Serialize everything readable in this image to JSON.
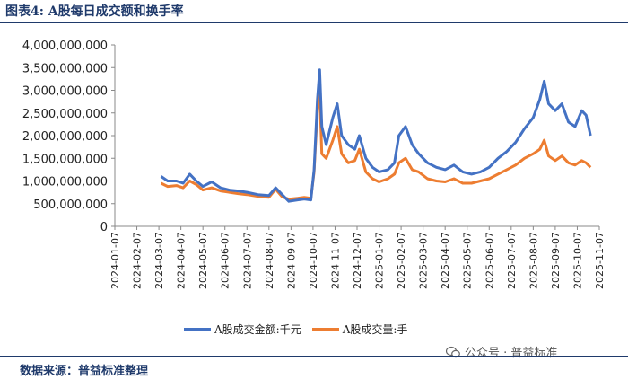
{
  "header": {
    "title": "图表4:  A股每日成交额和换手率"
  },
  "footer": {
    "source": "数据来源：普益标准整理"
  },
  "watermark": {
    "text": "公众号 · 普益标准"
  },
  "chart_data": {
    "type": "line",
    "title": "",
    "ylim": [
      0,
      4000000000
    ],
    "y_ticks": [
      "4,000,000,000",
      "3,500,000,000",
      "3,000,000,000",
      "2,500,000,000",
      "2,000,000,000",
      "1,500,000,000",
      "1,000,000,000",
      "500,000,000",
      "0"
    ],
    "x_ticks": [
      "2024-01-07",
      "2024-02-07",
      "2024-03-07",
      "2024-04-07",
      "2024-05-07",
      "2024-06-07",
      "2024-07-07",
      "2024-08-07",
      "2024-09-07",
      "2024-10-07",
      "2024-11-07",
      "2024-12-07",
      "2025-01-07",
      "2025-02-07",
      "2025-03-07",
      "2025-04-07",
      "2025-05-07",
      "2025-06-07",
      "2025-07-07",
      "2025-08-07",
      "2025-09-07",
      "2025-10-07",
      "2025-11-07"
    ],
    "grid": false,
    "legend_position": "bottom",
    "series": [
      {
        "name": "A股成交金额:千元",
        "color": "#4472c4",
        "points": [
          [
            2.1,
            1100000000.0
          ],
          [
            2.4,
            1000000000.0
          ],
          [
            2.8,
            1000000000.0
          ],
          [
            3.1,
            950000000.0
          ],
          [
            3.4,
            1150000000.0
          ],
          [
            3.7,
            1000000000.0
          ],
          [
            4.0,
            880000000.0
          ],
          [
            4.4,
            980000000.0
          ],
          [
            4.8,
            850000000.0
          ],
          [
            5.2,
            800000000.0
          ],
          [
            5.6,
            780000000.0
          ],
          [
            6.0,
            750000000.0
          ],
          [
            6.5,
            700000000.0
          ],
          [
            7.0,
            680000000.0
          ],
          [
            7.3,
            850000000.0
          ],
          [
            7.6,
            700000000.0
          ],
          [
            7.9,
            550000000.0
          ],
          [
            8.3,
            580000000.0
          ],
          [
            8.6,
            600000000.0
          ],
          [
            8.9,
            580000000.0
          ],
          [
            9.05,
            1250000000.0
          ],
          [
            9.2,
            2800000000.0
          ],
          [
            9.3,
            3450000000.0
          ],
          [
            9.4,
            2200000000.0
          ],
          [
            9.6,
            1800000000.0
          ],
          [
            9.9,
            2400000000.0
          ],
          [
            10.1,
            2700000000.0
          ],
          [
            10.3,
            2000000000.0
          ],
          [
            10.6,
            1800000000.0
          ],
          [
            10.9,
            1700000000.0
          ],
          [
            11.1,
            2000000000.0
          ],
          [
            11.4,
            1500000000.0
          ],
          [
            11.7,
            1300000000.0
          ],
          [
            12.0,
            1200000000.0
          ],
          [
            12.4,
            1250000000.0
          ],
          [
            12.7,
            1400000000.0
          ],
          [
            12.9,
            2000000000.0
          ],
          [
            13.2,
            2200000000.0
          ],
          [
            13.5,
            1800000000.0
          ],
          [
            13.8,
            1600000000.0
          ],
          [
            14.2,
            1400000000.0
          ],
          [
            14.6,
            1300000000.0
          ],
          [
            15.0,
            1250000000.0
          ],
          [
            15.4,
            1350000000.0
          ],
          [
            15.8,
            1200000000.0
          ],
          [
            16.2,
            1150000000.0
          ],
          [
            16.6,
            1200000000.0
          ],
          [
            17.0,
            1300000000.0
          ],
          [
            17.4,
            1500000000.0
          ],
          [
            17.8,
            1650000000.0
          ],
          [
            18.2,
            1850000000.0
          ],
          [
            18.6,
            2150000000.0
          ],
          [
            19.0,
            2400000000.0
          ],
          [
            19.3,
            2800000000.0
          ],
          [
            19.5,
            3200000000.0
          ],
          [
            19.7,
            2700000000.0
          ],
          [
            20.0,
            2550000000.0
          ],
          [
            20.3,
            2700000000.0
          ],
          [
            20.6,
            2300000000.0
          ],
          [
            20.9,
            2200000000.0
          ],
          [
            21.2,
            2550000000.0
          ],
          [
            21.4,
            2450000000.0
          ],
          [
            21.6,
            2000000000.0
          ]
        ]
      },
      {
        "name": "A股成交量:手",
        "color": "#ed7d31",
        "points": [
          [
            2.1,
            950000000.0
          ],
          [
            2.4,
            880000000.0
          ],
          [
            2.8,
            900000000.0
          ],
          [
            3.1,
            850000000.0
          ],
          [
            3.4,
            1000000000.0
          ],
          [
            3.7,
            920000000.0
          ],
          [
            4.0,
            800000000.0
          ],
          [
            4.4,
            850000000.0
          ],
          [
            4.8,
            780000000.0
          ],
          [
            5.2,
            750000000.0
          ],
          [
            5.6,
            720000000.0
          ],
          [
            6.0,
            700000000.0
          ],
          [
            6.5,
            660000000.0
          ],
          [
            7.0,
            640000000.0
          ],
          [
            7.3,
            820000000.0
          ],
          [
            7.6,
            650000000.0
          ],
          [
            7.9,
            600000000.0
          ],
          [
            8.3,
            620000000.0
          ],
          [
            8.6,
            640000000.0
          ],
          [
            8.9,
            620000000.0
          ],
          [
            9.05,
            1200000000.0
          ],
          [
            9.2,
            2600000000.0
          ],
          [
            9.3,
            2950000000.0
          ],
          [
            9.4,
            1600000000.0
          ],
          [
            9.6,
            1500000000.0
          ],
          [
            9.9,
            1900000000.0
          ],
          [
            10.1,
            2200000000.0
          ],
          [
            10.3,
            1600000000.0
          ],
          [
            10.6,
            1400000000.0
          ],
          [
            10.9,
            1450000000.0
          ],
          [
            11.1,
            1700000000.0
          ],
          [
            11.4,
            1200000000.0
          ],
          [
            11.7,
            1050000000.0
          ],
          [
            12.0,
            980000000.0
          ],
          [
            12.4,
            1050000000.0
          ],
          [
            12.7,
            1150000000.0
          ],
          [
            12.9,
            1400000000.0
          ],
          [
            13.2,
            1500000000.0
          ],
          [
            13.5,
            1250000000.0
          ],
          [
            13.8,
            1200000000.0
          ],
          [
            14.2,
            1050000000.0
          ],
          [
            14.6,
            1000000000.0
          ],
          [
            15.0,
            980000000.0
          ],
          [
            15.4,
            1050000000.0
          ],
          [
            15.8,
            950000000.0
          ],
          [
            16.2,
            950000000.0
          ],
          [
            16.6,
            1000000000.0
          ],
          [
            17.0,
            1050000000.0
          ],
          [
            17.4,
            1150000000.0
          ],
          [
            17.8,
            1250000000.0
          ],
          [
            18.2,
            1350000000.0
          ],
          [
            18.6,
            1500000000.0
          ],
          [
            19.0,
            1600000000.0
          ],
          [
            19.3,
            1700000000.0
          ],
          [
            19.5,
            1900000000.0
          ],
          [
            19.7,
            1550000000.0
          ],
          [
            20.0,
            1450000000.0
          ],
          [
            20.3,
            1550000000.0
          ],
          [
            20.6,
            1400000000.0
          ],
          [
            20.9,
            1350000000.0
          ],
          [
            21.2,
            1450000000.0
          ],
          [
            21.4,
            1400000000.0
          ],
          [
            21.6,
            1300000000.0
          ]
        ]
      }
    ]
  }
}
